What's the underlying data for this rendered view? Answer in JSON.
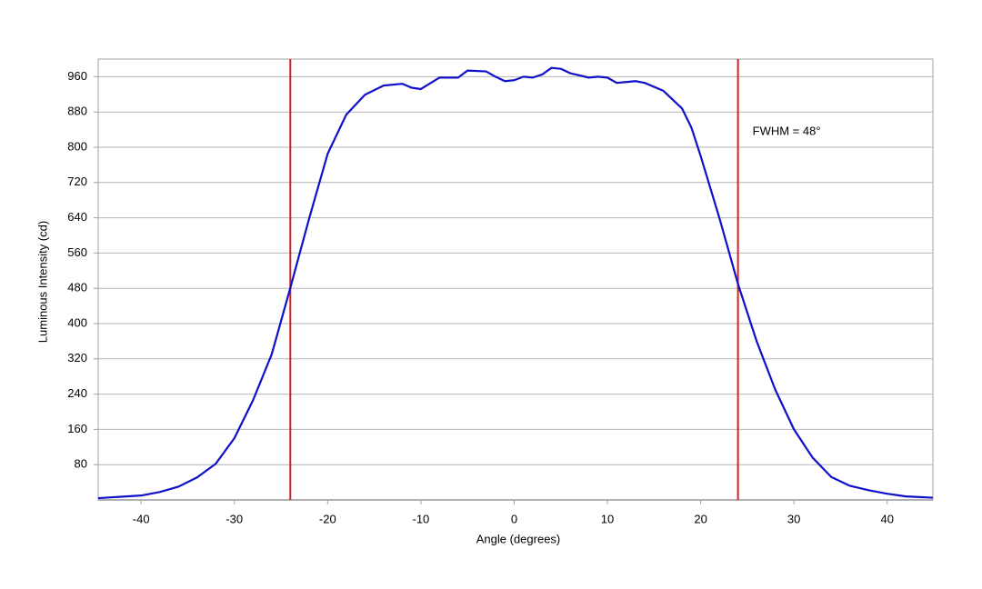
{
  "chart_data": {
    "type": "line",
    "x_label": "Angle (degrees)",
    "y_label": "Luminous Intensity (cd)",
    "annotation": "FWHM = 48°",
    "x": [
      -44.6,
      -40,
      -38,
      -36,
      -34,
      -32,
      -30,
      -28,
      -26,
      -24,
      -22,
      -20,
      -18,
      -16,
      -14,
      -12,
      -11,
      -10,
      -8,
      -6,
      -5,
      -3,
      -2,
      -1,
      0,
      1,
      2,
      3,
      4,
      5,
      6,
      8,
      9,
      10,
      11,
      12,
      13,
      14,
      16,
      18,
      19,
      20,
      22,
      24,
      26,
      28,
      30,
      32,
      34,
      36,
      38,
      40,
      42,
      44.9
    ],
    "series": [
      {
        "name": "Luminous Intensity",
        "color": "#1010c8",
        "values": [
          4,
          10,
          18,
          30,
          51,
          82,
          140,
          226,
          330,
          481,
          637,
          785,
          874,
          919,
          940,
          944,
          935,
          932,
          958,
          958,
          974,
          972,
          960,
          950,
          952,
          960,
          958,
          965,
          980,
          978,
          968,
          958,
          960,
          958,
          946,
          948,
          950,
          946,
          928,
          888,
          845,
          780,
          640,
          490,
          360,
          250,
          160,
          96,
          52,
          32,
          22,
          14,
          8,
          5
        ]
      }
    ],
    "vlines": [
      -24,
      24
    ],
    "vline_color": "#d42020",
    "xlim": [
      -44.6,
      44.9
    ],
    "ylim": [
      0,
      1000
    ],
    "xticks": [
      -40,
      -30,
      -20,
      -10,
      0,
      10,
      20,
      30,
      40
    ],
    "yticks": [
      80,
      160,
      240,
      320,
      400,
      480,
      560,
      640,
      720,
      800,
      880,
      960
    ],
    "grid": true
  }
}
